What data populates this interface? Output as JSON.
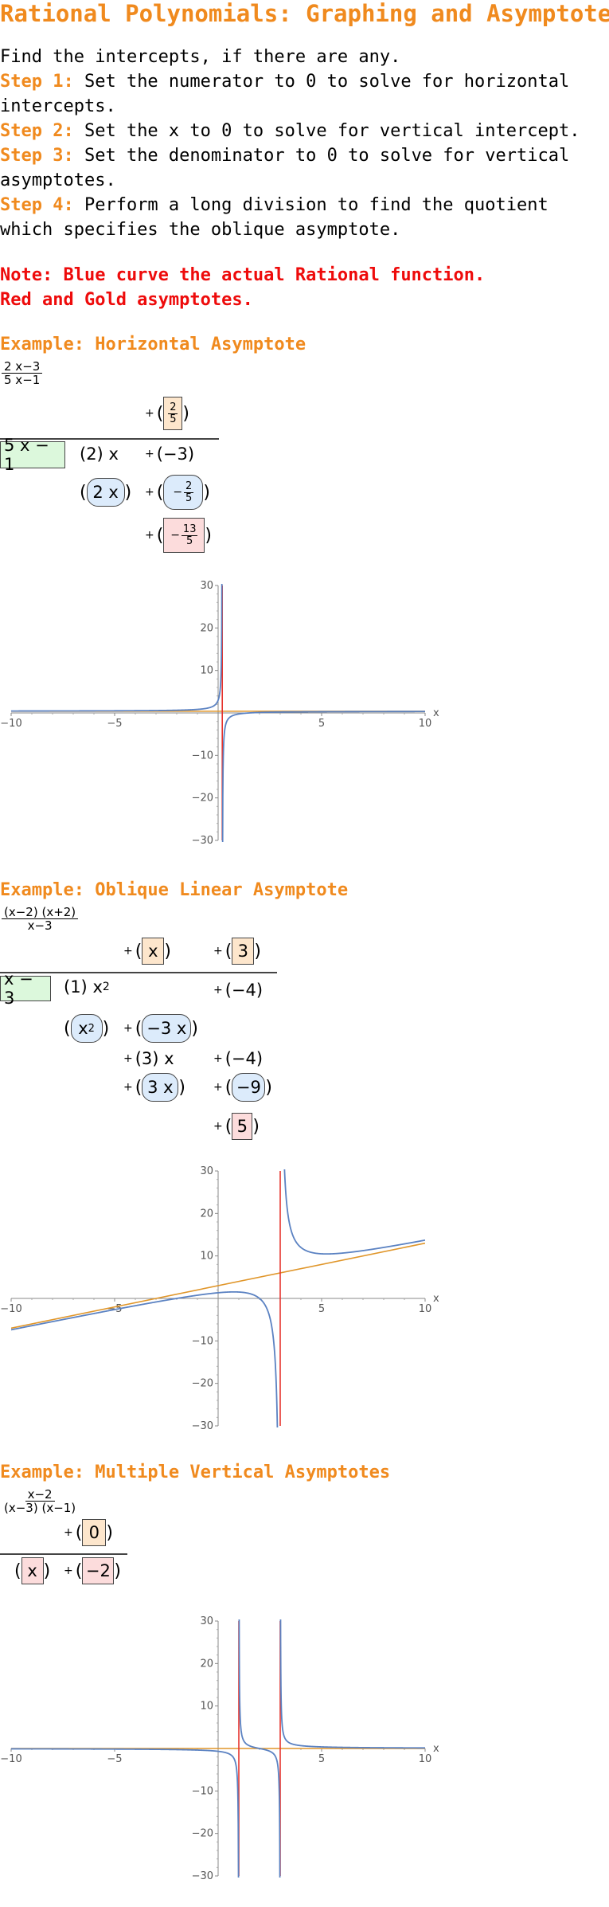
{
  "title": "Rational Polynomials: Graphing and Asymptotes",
  "intro": "Find the intercepts, if there are any.",
  "steps": [
    {
      "label": "Step 1:",
      "text": " Set the numerator to 0 to solve for horizontal intercepts."
    },
    {
      "label": "Step 2:",
      "text": " Set the x to 0 to solve for vertical intercept."
    },
    {
      "label": "Step 3:",
      "text": " Set the denominator to 0 to solve for vertical asymptotes."
    },
    {
      "label": "Step 4:",
      "text": " Perform a long division to find the quotient which specifies the oblique asymptote."
    }
  ],
  "note": {
    "line1": "Note: Blue curve the actual Rational function.",
    "line2": "Red and Gold asymptotes."
  },
  "colors": {
    "accent": "#f08a1e",
    "note": "#ee0b0b",
    "curve": "#5b82c2",
    "vertical_asymptote": "#e6342e",
    "oblique_asymptote": "#e0962a"
  },
  "examples": [
    {
      "heading": "Example: Horizontal Asymptote",
      "fraction": {
        "num": "2 x−3",
        "den": "5 x−1"
      },
      "division": {
        "divisor": "5 x − 1",
        "quotient": [
          {
            "num": "2",
            "den": "5"
          }
        ],
        "dividend": {
          "lead_coef": "(2)",
          "lead_var": "x",
          "const": "(−3)"
        },
        "subtract": {
          "term": "2 x",
          "const_num": "2",
          "const_den": "5",
          "const_sign": "−"
        },
        "remainder": {
          "sign": "−",
          "num": "13",
          "den": "5"
        }
      },
      "chart_data": {
        "type": "line",
        "function": "(2x-3)/(5x-1)",
        "xlim": [
          -10,
          10
        ],
        "ylim": [
          -30,
          30
        ],
        "xticks": [
          "-10",
          "-5",
          "5",
          "10"
        ],
        "yticks": [
          "30",
          "20",
          "10",
          "-10",
          "-20",
          "-30"
        ],
        "xlabel": "x",
        "vertical_asymptotes": [
          0.2
        ],
        "oblique_asymptote": {
          "slope": 0,
          "intercept": 0.4
        },
        "grid": false
      }
    },
    {
      "heading": "Example: Oblique Linear Asymptote",
      "fraction": {
        "num": "(x−2) (x+2)",
        "den": "x−3"
      },
      "division": {
        "divisor": "x − 3",
        "quotient": [
          "x",
          "3"
        ],
        "dividend": {
          "lead_coef": "(1)",
          "lead_var": "x",
          "lead_exp": "2",
          "const": "(−4)"
        },
        "subtract1": {
          "term": "x",
          "exp": "2",
          "second": "−3 x"
        },
        "row2": {
          "coef": "(3)",
          "var": "x",
          "const": "(−4)"
        },
        "subtract2": {
          "term": "3 x",
          "const": "−9"
        },
        "remainder": "5"
      },
      "chart_data": {
        "type": "line",
        "function": "(x-2)(x+2)/(x-3)",
        "xlim": [
          -10,
          10
        ],
        "ylim": [
          -30,
          30
        ],
        "xticks": [
          "-10",
          "-5",
          "5",
          "10"
        ],
        "yticks": [
          "30",
          "20",
          "10",
          "-10",
          "-20",
          "-30"
        ],
        "xlabel": "x",
        "vertical_asymptotes": [
          3
        ],
        "oblique_asymptote": {
          "slope": 1,
          "intercept": 3
        },
        "grid": false
      }
    },
    {
      "heading": "Example: Multiple Vertical Asymptotes",
      "fraction": {
        "num": "x−2",
        "den": "(x−3) (x−1)"
      },
      "division": {
        "divisor": "x",
        "divisor_const": "−2",
        "quotient": [
          "0"
        ]
      },
      "chart_data": {
        "type": "line",
        "function": "(x-2)/((x-3)(x-1))",
        "xlim": [
          -10,
          10
        ],
        "ylim": [
          -30,
          30
        ],
        "xticks": [
          "-10",
          "-5",
          "5",
          "10"
        ],
        "yticks": [
          "30",
          "20",
          "10",
          "-10",
          "-20",
          "-30"
        ],
        "xlabel": "x",
        "vertical_asymptotes": [
          1,
          3
        ],
        "oblique_asymptote": {
          "slope": 0,
          "intercept": 0
        },
        "grid": false
      }
    }
  ],
  "plus_sign": "+"
}
